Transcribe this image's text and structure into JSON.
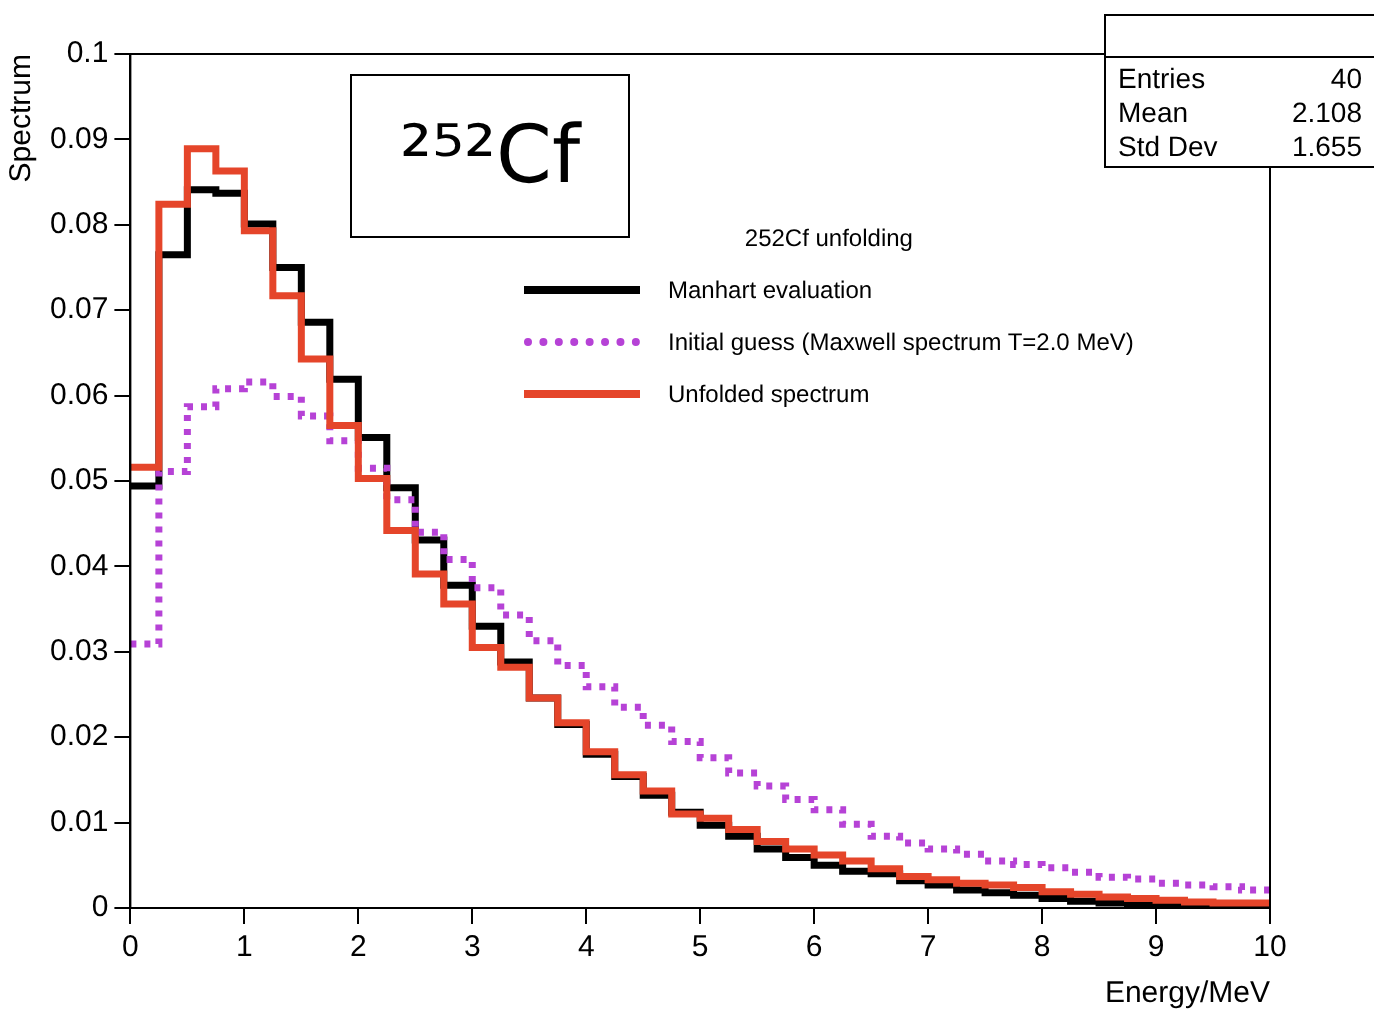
{
  "chart_data": {
    "type": "histogram",
    "legend_title": "252Cf unfolding",
    "xlabel": "Energy/MeV",
    "ylabel": "Spectrum",
    "bins": [
      0,
      0.25,
      0.5,
      0.75,
      1,
      1.25,
      1.5,
      1.75,
      2,
      2.25,
      2.5,
      2.75,
      3,
      3.25,
      3.5,
      3.75,
      4,
      4.25,
      4.5,
      4.75,
      5,
      5.25,
      5.5,
      5.75,
      6,
      6.25,
      6.5,
      6.75,
      7,
      7.25,
      7.5,
      7.75,
      8,
      8.25,
      8.5,
      8.75,
      9,
      9.25,
      9.5,
      9.75,
      10
    ],
    "series": [
      {
        "name": "Manhart evaluation",
        "color": "#000000",
        "line_style": "solid",
        "values": [
          0.0494,
          0.0765,
          0.0841,
          0.0837,
          0.0801,
          0.075,
          0.0686,
          0.0619,
          0.0551,
          0.0492,
          0.0431,
          0.0378,
          0.033,
          0.0288,
          0.0246,
          0.0215,
          0.018,
          0.0154,
          0.0132,
          0.0112,
          0.0097,
          0.0084,
          0.0069,
          0.0059,
          0.005,
          0.0043,
          0.004,
          0.0032,
          0.0027,
          0.0021,
          0.0018,
          0.0015,
          0.0011,
          0.0008,
          0.0006,
          0.0004,
          0.0002,
          0.0002,
          0.0001,
          0.0001
        ]
      },
      {
        "name": "Initial guess (Maxwell spectrum T=2.0 MeV)",
        "color": "#b642d6",
        "line_style": "dotted",
        "values": [
          0.0309,
          0.0511,
          0.0587,
          0.0608,
          0.0616,
          0.0599,
          0.0576,
          0.0547,
          0.0515,
          0.0478,
          0.044,
          0.0408,
          0.0375,
          0.0343,
          0.0313,
          0.0284,
          0.0259,
          0.0235,
          0.0214,
          0.0195,
          0.0176,
          0.0158,
          0.0143,
          0.0127,
          0.0115,
          0.0098,
          0.0084,
          0.0076,
          0.0069,
          0.0063,
          0.0055,
          0.0051,
          0.0047,
          0.0042,
          0.0036,
          0.0034,
          0.0029,
          0.0027,
          0.0025,
          0.0021
        ]
      },
      {
        "name": "Unfolded spectrum",
        "color": "#e5452a",
        "line_style": "solid",
        "values": [
          0.0516,
          0.0824,
          0.0889,
          0.0863,
          0.0793,
          0.0717,
          0.0643,
          0.0565,
          0.0503,
          0.0442,
          0.0391,
          0.0356,
          0.0305,
          0.0282,
          0.0246,
          0.0217,
          0.0183,
          0.0156,
          0.0137,
          0.011,
          0.0105,
          0.0092,
          0.0078,
          0.0069,
          0.0062,
          0.0055,
          0.0046,
          0.0037,
          0.0033,
          0.0029,
          0.0027,
          0.0024,
          0.0019,
          0.0016,
          0.0013,
          0.0011,
          0.0009,
          0.0007,
          0.0006,
          0.0006
        ]
      }
    ],
    "xlim": [
      0,
      10
    ],
    "xticks": [
      0,
      1,
      2,
      3,
      4,
      5,
      6,
      7,
      8,
      9,
      10
    ],
    "ylim": [
      0,
      0.1
    ],
    "yticks": [
      0,
      0.01,
      0.02,
      0.03,
      0.04,
      0.05,
      0.06,
      0.07,
      0.08,
      0.09,
      0.1
    ],
    "grid": false,
    "legend": "top right",
    "annotations": [
      "²⁵²Cf",
      "Entries",
      "40",
      "Mean",
      "2.108",
      "Std Dev",
      "1.655"
    ]
  }
}
